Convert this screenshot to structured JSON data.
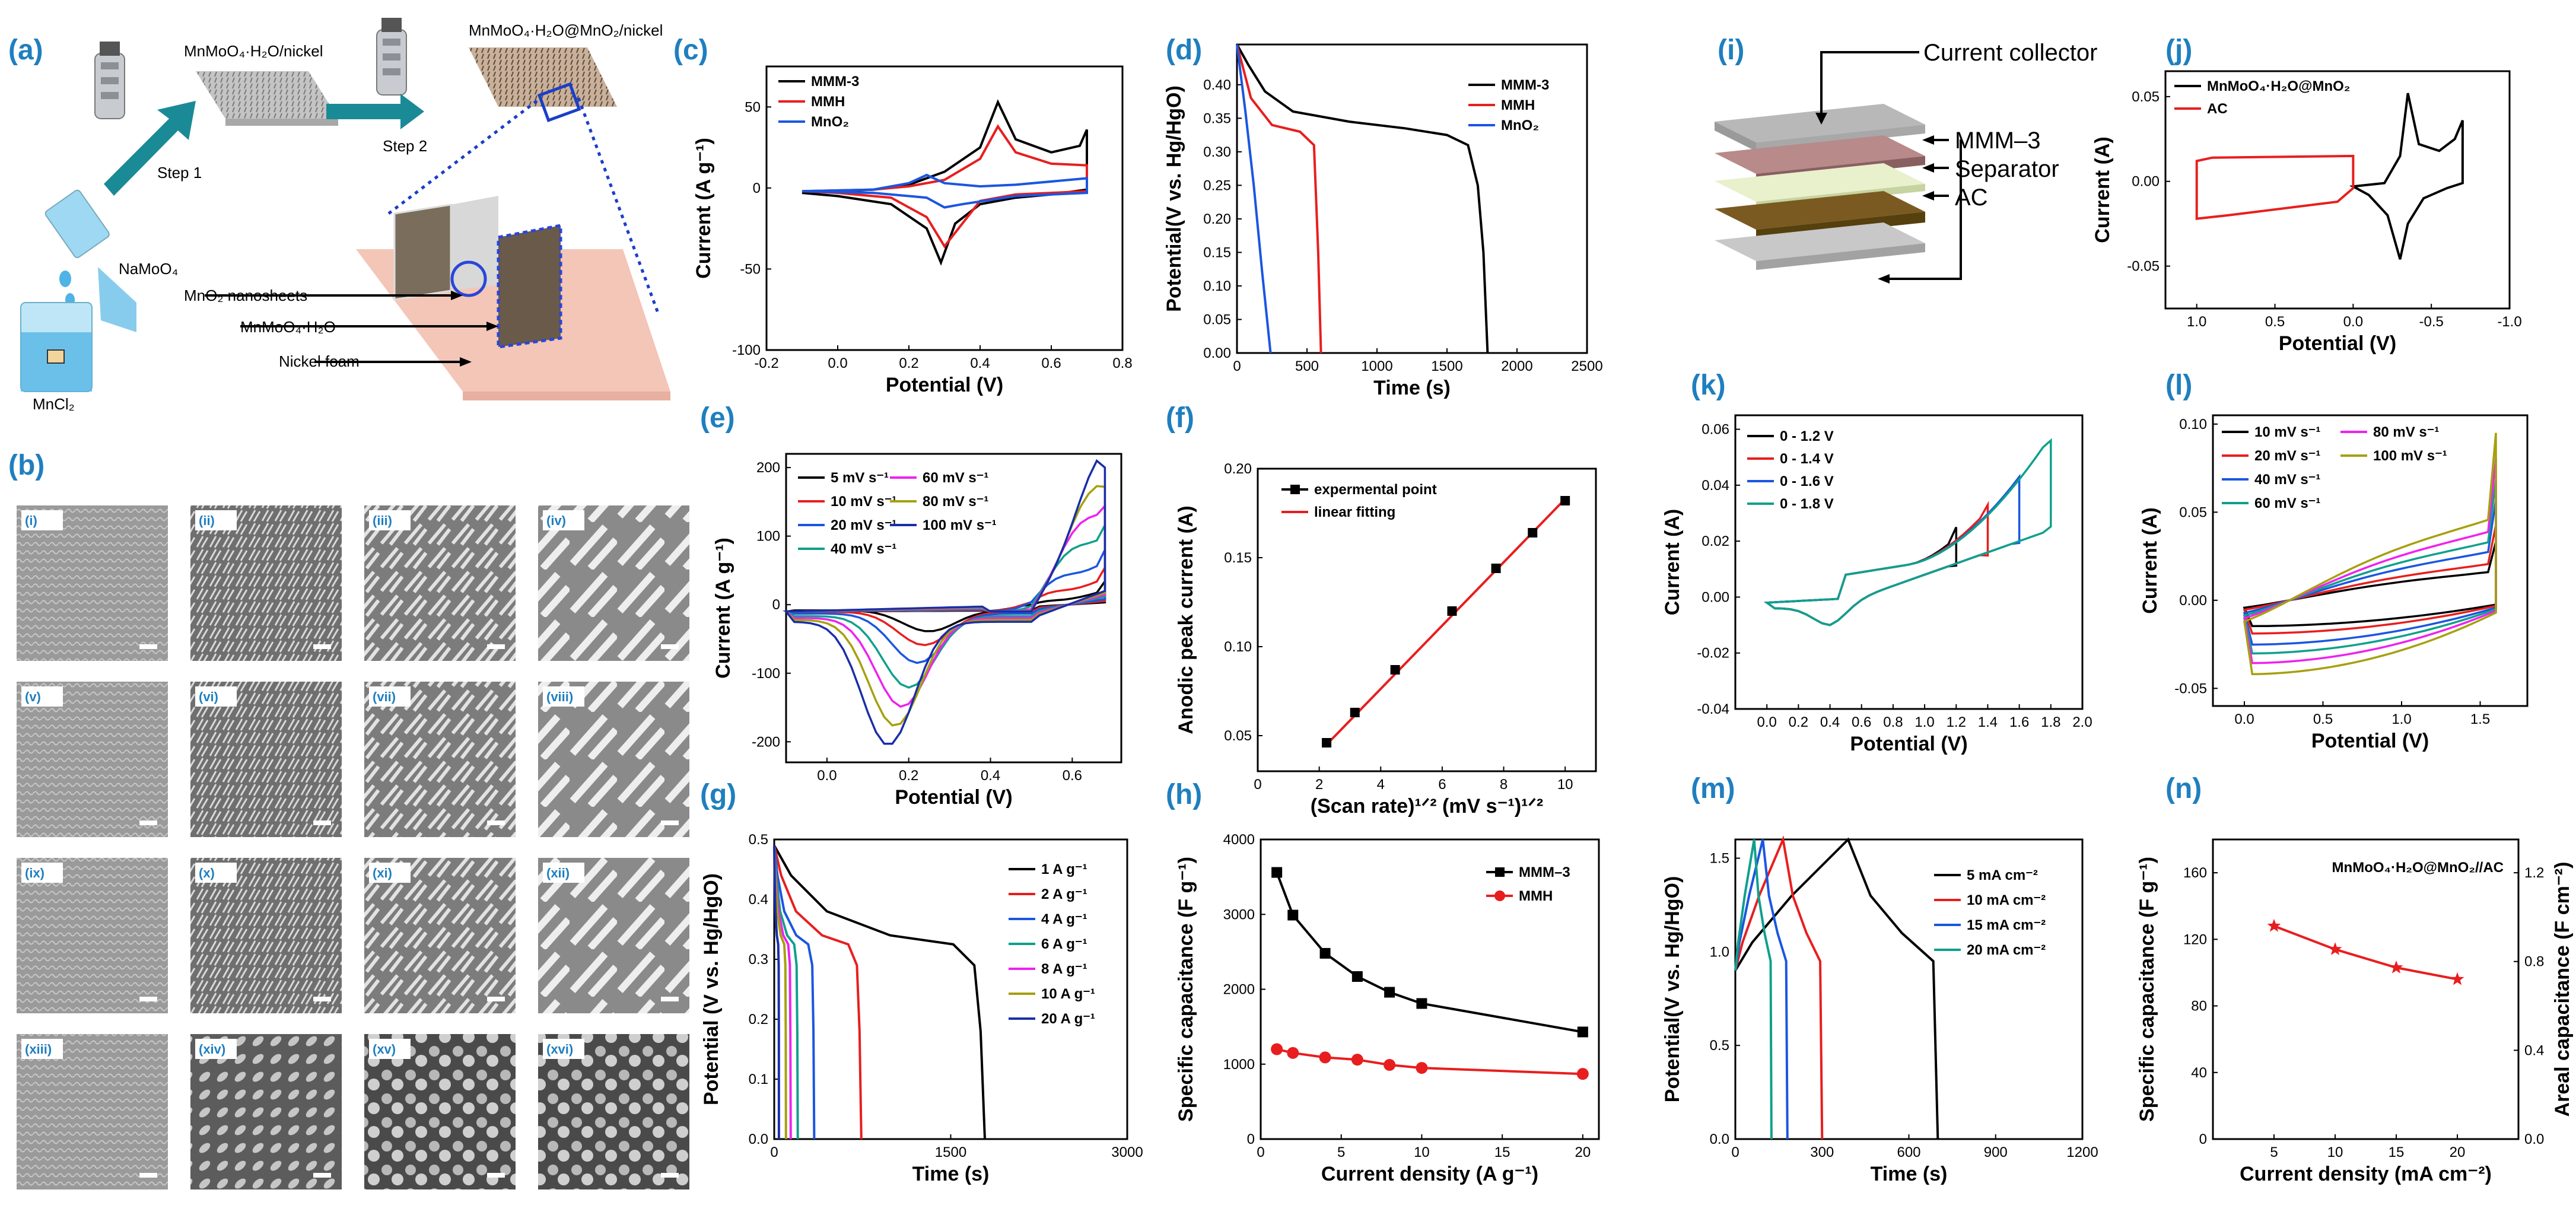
{
  "panel_labels": [
    "(a)",
    "(b)",
    "(c)",
    "(d)",
    "(e)",
    "(f)",
    "(g)",
    "(h)",
    "(i)",
    "(j)",
    "(k)",
    "(l)",
    "(m)",
    "(n)"
  ],
  "schematic_a": {
    "top_left_label": "MnMoO₄·H₂O/nickel",
    "top_right_label": "MnMoO₄·H₂O@MnO₂/nickel",
    "step1": "Step 1",
    "step2": "Step 2",
    "reagent1": "NaMoO₄",
    "reagent2": "MnCl₂",
    "layer_labels": [
      "MnO₂ nanosheets",
      "MnMoO₄·H₂O",
      "Nickel foam"
    ]
  },
  "sem_b": {
    "tiles": [
      "(i)",
      "(ii)",
      "(iii)",
      "(iv)",
      "(v)",
      "(vi)",
      "(vii)",
      "(viii)",
      "(ix)",
      "(x)",
      "(xi)",
      "(xii)",
      "(xiii)",
      "(xiv)",
      "(xv)",
      "(xvi)"
    ]
  },
  "schematic_i": {
    "labels": [
      "Current collector",
      "MMM–3",
      "Separator",
      "AC"
    ]
  },
  "colors": {
    "black": "#000000",
    "red": "#e81e1e",
    "blue": "#1a56e0",
    "magenta": "#ee22ee",
    "olive": "#a6a00e",
    "navy": "#1a2ea8",
    "teal": "#0fa08c",
    "label_blue": "#1f7fbf"
  },
  "chart_data": [
    {
      "id": "c",
      "type": "line",
      "xlabel": "Potential (V)",
      "ylabel": "Current (A g⁻¹)",
      "xlim": [
        -0.2,
        0.8
      ],
      "ylim": [
        -100,
        75
      ],
      "xticks": [
        -0.2,
        0.0,
        0.2,
        0.4,
        0.6,
        0.8
      ],
      "yticks": [
        -100,
        -50,
        0,
        50
      ],
      "legend": "top-left",
      "series": [
        {
          "name": "MMM-3",
          "color": "black",
          "closed": true,
          "points": [
            [
              -0.1,
              -3
            ],
            [
              0.1,
              -1
            ],
            [
              0.2,
              2
            ],
            [
              0.3,
              10
            ],
            [
              0.4,
              25
            ],
            [
              0.45,
              53
            ],
            [
              0.5,
              30
            ],
            [
              0.6,
              22
            ],
            [
              0.68,
              26
            ],
            [
              0.7,
              36
            ],
            [
              0.7,
              -1
            ],
            [
              0.6,
              -4
            ],
            [
              0.5,
              -6
            ],
            [
              0.4,
              -10
            ],
            [
              0.33,
              -22
            ],
            [
              0.29,
              -46
            ],
            [
              0.25,
              -25
            ],
            [
              0.15,
              -10
            ],
            [
              0,
              -5
            ],
            [
              -0.1,
              -3
            ]
          ]
        },
        {
          "name": "MMH",
          "color": "red",
          "closed": true,
          "points": [
            [
              -0.1,
              -2
            ],
            [
              0.1,
              -1
            ],
            [
              0.2,
              1
            ],
            [
              0.3,
              5
            ],
            [
              0.4,
              18
            ],
            [
              0.45,
              38
            ],
            [
              0.5,
              22
            ],
            [
              0.6,
              15
            ],
            [
              0.7,
              14
            ],
            [
              0.7,
              -2
            ],
            [
              0.6,
              -3
            ],
            [
              0.5,
              -4
            ],
            [
              0.4,
              -8
            ],
            [
              0.3,
              -36
            ],
            [
              0.25,
              -18
            ],
            [
              0.15,
              -6
            ],
            [
              0,
              -3
            ],
            [
              -0.1,
              -2
            ]
          ]
        },
        {
          "name": "MnO₂",
          "color": "blue",
          "closed": true,
          "points": [
            [
              -0.1,
              -2
            ],
            [
              0.1,
              -1
            ],
            [
              0.2,
              3
            ],
            [
              0.25,
              8
            ],
            [
              0.3,
              3
            ],
            [
              0.4,
              1
            ],
            [
              0.5,
              2
            ],
            [
              0.7,
              6
            ],
            [
              0.7,
              -3
            ],
            [
              0.5,
              -5
            ],
            [
              0.35,
              -10
            ],
            [
              0.3,
              -12
            ],
            [
              0.25,
              -6
            ],
            [
              0.1,
              -3
            ],
            [
              -0.1,
              -2
            ]
          ]
        }
      ]
    },
    {
      "id": "d",
      "type": "line",
      "xlabel": "Time (s)",
      "ylabel": "Potential(V vs. Hg/HgO)",
      "xlim": [
        0,
        2500
      ],
      "ylim": [
        0,
        0.46
      ],
      "xticks": [
        0,
        500,
        1000,
        1500,
        2000,
        2500
      ],
      "yticks": [
        0.0,
        0.05,
        0.1,
        0.15,
        0.2,
        0.25,
        0.3,
        0.35,
        0.4
      ],
      "legend": "top-right",
      "series": [
        {
          "name": "MMM-3",
          "color": "black",
          "points": [
            [
              0,
              0.46
            ],
            [
              80,
              0.43
            ],
            [
              200,
              0.39
            ],
            [
              400,
              0.36
            ],
            [
              800,
              0.345
            ],
            [
              1200,
              0.335
            ],
            [
              1500,
              0.325
            ],
            [
              1650,
              0.31
            ],
            [
              1720,
              0.25
            ],
            [
              1760,
              0.15
            ],
            [
              1790,
              0
            ]
          ]
        },
        {
          "name": "MMH",
          "color": "red",
          "points": [
            [
              0,
              0.46
            ],
            [
              100,
              0.38
            ],
            [
              250,
              0.34
            ],
            [
              450,
              0.33
            ],
            [
              550,
              0.31
            ],
            [
              580,
              0.15
            ],
            [
              600,
              0
            ]
          ]
        },
        {
          "name": "MnO₂",
          "color": "blue",
          "points": [
            [
              0,
              0.46
            ],
            [
              60,
              0.36
            ],
            [
              120,
              0.25
            ],
            [
              180,
              0.12
            ],
            [
              240,
              0
            ]
          ]
        }
      ]
    },
    {
      "id": "e",
      "type": "line",
      "xlabel": "Potential (V)",
      "ylabel": "Current (A g⁻¹)",
      "xlim": [
        -0.1,
        0.72
      ],
      "ylim": [
        -230,
        220
      ],
      "xticks": [
        0.0,
        0.2,
        0.4,
        0.6
      ],
      "yticks": [
        -200,
        -100,
        0,
        100,
        200
      ],
      "legend": "top-left",
      "series": [
        {
          "name": "5 mV s⁻¹",
          "color": "black",
          "closed": true,
          "amp": 0.17
        },
        {
          "name": "10 mV s⁻¹",
          "color": "red",
          "closed": true,
          "amp": 0.27
        },
        {
          "name": "20 mV s⁻¹",
          "color": "blue",
          "closed": true,
          "amp": 0.4
        },
        {
          "name": "40 mV s⁻¹",
          "color": "teal",
          "closed": true,
          "amp": 0.58
        },
        {
          "name": "60 mV s⁻¹",
          "color": "magenta",
          "closed": true,
          "amp": 0.72
        },
        {
          "name": "80 mV s⁻¹",
          "color": "olive",
          "closed": true,
          "amp": 0.86
        },
        {
          "name": "100 mV s⁻¹",
          "color": "navy",
          "closed": true,
          "amp": 1.0
        }
      ]
    },
    {
      "id": "f",
      "type": "scatter",
      "xlabel": "(Scan rate)¹ᐟ² (mV s⁻¹)¹ᐟ²",
      "ylabel": "Anodic peak current (A)",
      "xlim": [
        0,
        11
      ],
      "ylim": [
        0.03,
        0.2
      ],
      "xticks": [
        0,
        2,
        4,
        6,
        8,
        10
      ],
      "yticks": [
        0.05,
        0.1,
        0.15,
        0.2
      ],
      "legend": "top-left",
      "series": [
        {
          "name": "expermental point",
          "color": "black",
          "marker": "square",
          "points": [
            [
              2.24,
              0.046
            ],
            [
              3.16,
              0.063
            ],
            [
              4.47,
              0.087
            ],
            [
              6.32,
              0.12
            ],
            [
              7.75,
              0.144
            ],
            [
              8.94,
              0.164
            ],
            [
              10,
              0.182
            ]
          ]
        },
        {
          "name": "linear fitting",
          "color": "red",
          "points": [
            [
              2.24,
              0.045
            ],
            [
              10,
              0.183
            ]
          ]
        }
      ]
    },
    {
      "id": "g",
      "type": "line",
      "xlabel": "Time (s)",
      "ylabel": "Potential (V vs. Hg/HgO)",
      "xlim": [
        0,
        3000
      ],
      "ylim": [
        0,
        0.5
      ],
      "xticks": [
        0,
        1500,
        3000
      ],
      "yticks": [
        0.0,
        0.1,
        0.2,
        0.3,
        0.4,
        0.5
      ],
      "legend": "right",
      "series": [
        {
          "name": "1 A g⁻¹",
          "color": "black",
          "end": 1790
        },
        {
          "name": "2 A g⁻¹",
          "color": "red",
          "end": 740
        },
        {
          "name": "4 A g⁻¹",
          "color": "blue",
          "end": 340
        },
        {
          "name": "6 A g⁻¹",
          "color": "teal",
          "end": 200
        },
        {
          "name": "8 A g⁻¹",
          "color": "magenta",
          "end": 140
        },
        {
          "name": "10 A g⁻¹",
          "color": "olive",
          "end": 100
        },
        {
          "name": "20 A g⁻¹",
          "color": "navy",
          "end": 40
        }
      ]
    },
    {
      "id": "h",
      "type": "line",
      "xlabel": "Current density (A g⁻¹)",
      "ylabel": "Specific capacitance (F g⁻¹)",
      "xlim": [
        0,
        21
      ],
      "ylim": [
        0,
        4000
      ],
      "xticks": [
        0,
        5,
        10,
        15,
        20
      ],
      "yticks": [
        0,
        1000,
        2000,
        3000,
        4000
      ],
      "legend": "top-right",
      "series": [
        {
          "name": "MMM–3",
          "color": "black",
          "marker": "square",
          "points": [
            [
              1,
              3560
            ],
            [
              2,
              2990
            ],
            [
              4,
              2480
            ],
            [
              6,
              2170
            ],
            [
              8,
              1960
            ],
            [
              10,
              1810
            ],
            [
              20,
              1430
            ]
          ]
        },
        {
          "name": "MMH",
          "color": "red",
          "marker": "circle",
          "points": [
            [
              1,
              1200
            ],
            [
              2,
              1150
            ],
            [
              4,
              1090
            ],
            [
              6,
              1060
            ],
            [
              8,
              990
            ],
            [
              10,
              950
            ],
            [
              20,
              870
            ]
          ]
        }
      ]
    },
    {
      "id": "j",
      "type": "line",
      "xlabel": "Potential (V)",
      "ylabel": "Current (A)",
      "xlim": [
        1.2,
        -1.0
      ],
      "ylim": [
        -0.075,
        0.065
      ],
      "xticks": [
        1.0,
        0.5,
        0.0,
        -0.5,
        -1.0
      ],
      "xtick_labels": [
        "1.0",
        "0.5",
        "0.0",
        "-0.5",
        "-1.0"
      ],
      "yticks": [
        -0.05,
        0.0,
        0.05
      ],
      "legend": "top-left",
      "series": [
        {
          "name": "MnMoO₄·H₂O@MnO₂",
          "color": "black",
          "closed": true,
          "points": [
            [
              0,
              -0.003
            ],
            [
              -0.2,
              -0.001
            ],
            [
              -0.3,
              0.015
            ],
            [
              -0.35,
              0.052
            ],
            [
              -0.42,
              0.022
            ],
            [
              -0.55,
              0.018
            ],
            [
              -0.65,
              0.025
            ],
            [
              -0.7,
              0.036
            ],
            [
              -0.7,
              -0.001
            ],
            [
              -0.6,
              -0.004
            ],
            [
              -0.45,
              -0.01
            ],
            [
              -0.35,
              -0.025
            ],
            [
              -0.3,
              -0.046
            ],
            [
              -0.22,
              -0.02
            ],
            [
              -0.1,
              -0.008
            ],
            [
              0,
              -0.003
            ]
          ]
        },
        {
          "name": "AC",
          "color": "red",
          "closed": true,
          "points": [
            [
              1.0,
              -0.022
            ],
            [
              1.0,
              0.012
            ],
            [
              0.9,
              0.014
            ],
            [
              0,
              0.015
            ],
            [
              0,
              -0.004
            ],
            [
              0.1,
              -0.012
            ],
            [
              0.8,
              -0.02
            ],
            [
              1.0,
              -0.022
            ]
          ]
        }
      ]
    },
    {
      "id": "k",
      "type": "line",
      "xlabel": "Potential (V)",
      "ylabel": "Current (A)",
      "xlim": [
        -0.2,
        2.0
      ],
      "ylim": [
        -0.04,
        0.065
      ],
      "xticks": [
        0.0,
        0.2,
        0.4,
        0.6,
        0.8,
        1.0,
        1.2,
        1.4,
        1.6,
        1.8,
        2.0
      ],
      "yticks": [
        -0.04,
        -0.02,
        0.0,
        0.02,
        0.04,
        0.06
      ],
      "legend": "top-left",
      "series": [
        {
          "name": "0 - 1.2 V",
          "color": "black",
          "vmax": 1.2,
          "imax": 0.025
        },
        {
          "name": "0 - 1.4 V",
          "color": "red",
          "vmax": 1.4,
          "imax": 0.033
        },
        {
          "name": "0 - 1.6 V",
          "color": "blue",
          "vmax": 1.6,
          "imax": 0.043
        },
        {
          "name": "0 - 1.8 V",
          "color": "teal",
          "vmax": 1.8,
          "imax": 0.056
        }
      ]
    },
    {
      "id": "l",
      "type": "line",
      "xlabel": "Potential (V)",
      "ylabel": "Current (A)",
      "xlim": [
        -0.2,
        1.8
      ],
      "ylim": [
        -0.06,
        0.105
      ],
      "xticks": [
        0.0,
        0.5,
        1.0,
        1.5
      ],
      "yticks": [
        -0.05,
        0.0,
        0.05,
        0.1
      ],
      "legend": "top-left",
      "series": [
        {
          "name": "10 mV s⁻¹",
          "color": "black",
          "amp": 0.35
        },
        {
          "name": "20 mV s⁻¹",
          "color": "red",
          "amp": 0.45
        },
        {
          "name": "40 mV s⁻¹",
          "color": "blue",
          "amp": 0.6
        },
        {
          "name": "60 mV s⁻¹",
          "color": "teal",
          "amp": 0.72
        },
        {
          "name": "80 mV s⁻¹",
          "color": "magenta",
          "amp": 0.85
        },
        {
          "name": "100 mV s⁻¹",
          "color": "olive",
          "amp": 1.0
        }
      ]
    },
    {
      "id": "m",
      "type": "line",
      "xlabel": "Time (s)",
      "ylabel": "Potential(V vs. Hg/HgO)",
      "xlim": [
        0,
        1200
      ],
      "ylim": [
        0,
        1.6
      ],
      "xticks": [
        0,
        300,
        600,
        900,
        1200
      ],
      "yticks": [
        0.0,
        0.5,
        1.0,
        1.5
      ],
      "legend": "right",
      "series": [
        {
          "name": "5 mA cm⁻²",
          "color": "black",
          "peak": 390,
          "end": 700
        },
        {
          "name": "10 mA cm⁻²",
          "color": "red",
          "peak": 165,
          "end": 300
        },
        {
          "name": "15 mA cm⁻²",
          "color": "blue",
          "peak": 95,
          "end": 180
        },
        {
          "name": "20 mA cm⁻²",
          "color": "teal",
          "peak": 65,
          "end": 125
        }
      ]
    },
    {
      "id": "n",
      "type": "line",
      "xlabel": "Current density (mA cm⁻²)",
      "ylabel": "Specific capacitance (F g⁻¹)",
      "y2label": "Areal capacitance (F cm⁻²)",
      "title": "MnMoO₄·H₂O@MnO₂//AC",
      "xlim": [
        0,
        25
      ],
      "ylim": [
        0,
        180
      ],
      "y2lim": [
        0,
        1.35
      ],
      "xticks": [
        5,
        10,
        15,
        20
      ],
      "yticks": [
        0,
        40,
        80,
        120,
        160
      ],
      "y2ticks": [
        0.0,
        0.4,
        0.8,
        1.2
      ],
      "series": [
        {
          "name": "",
          "color": "red",
          "marker": "star",
          "points": [
            [
              5,
              128
            ],
            [
              10,
              114
            ],
            [
              15,
              103
            ],
            [
              20,
              96
            ]
          ]
        }
      ]
    }
  ]
}
